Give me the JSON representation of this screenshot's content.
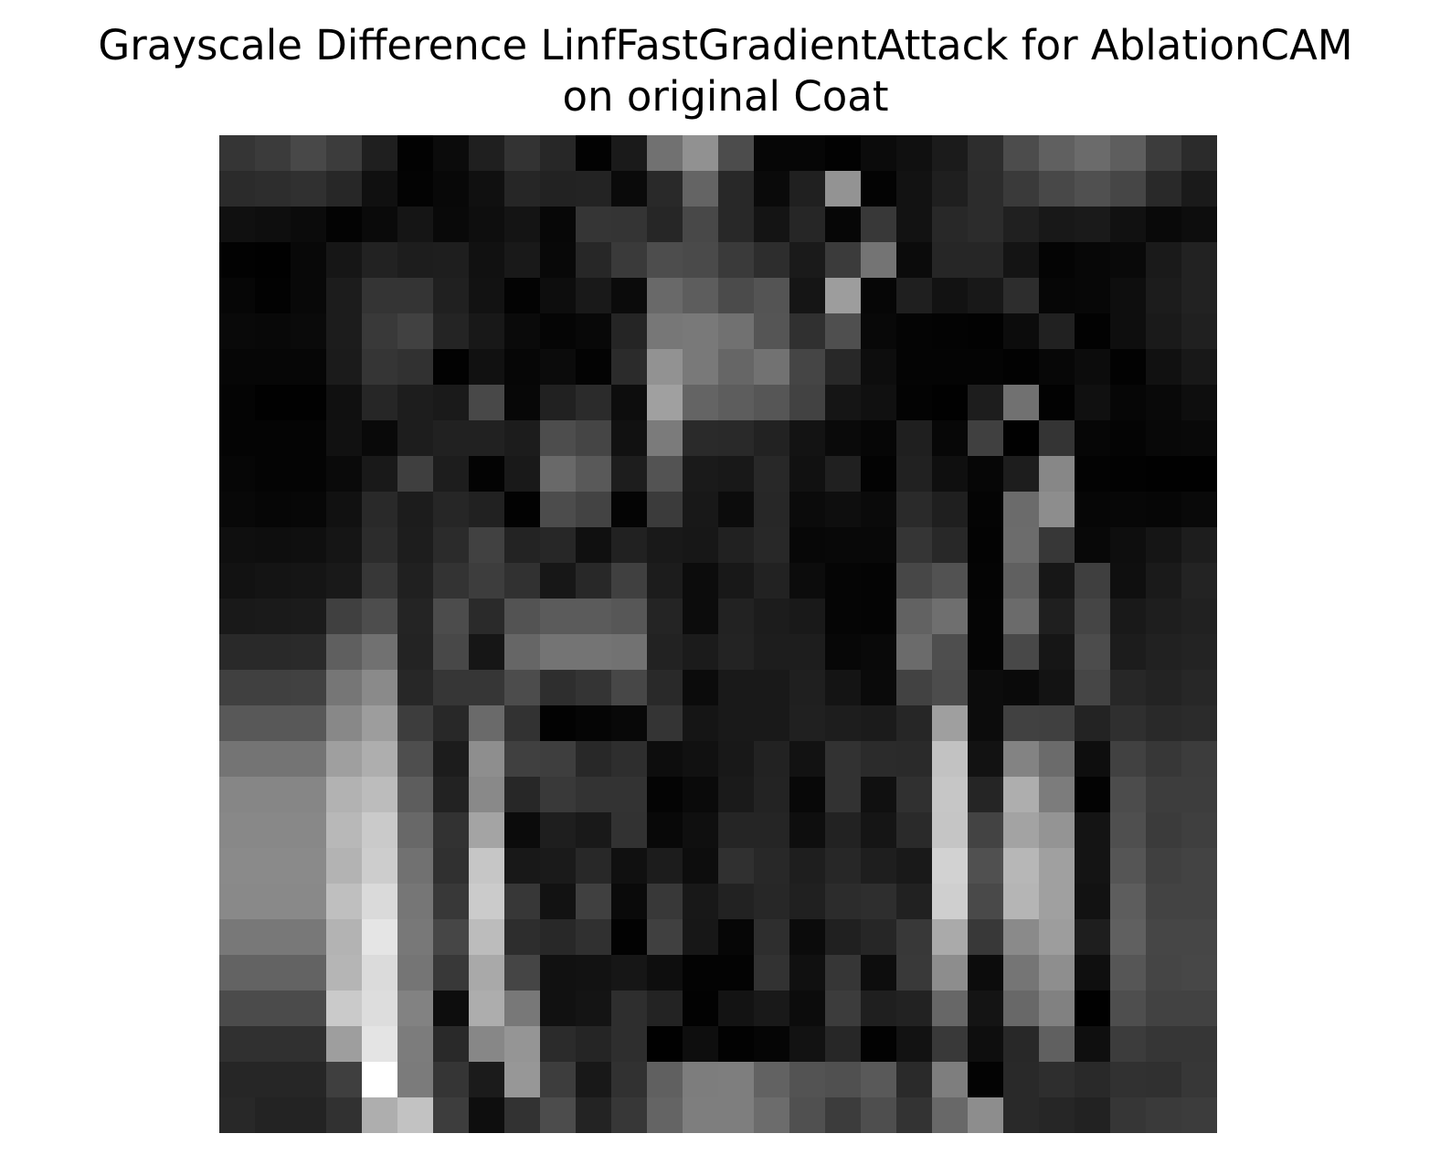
{
  "chart_data": {
    "type": "heatmap",
    "title_line1": "Grayscale Difference LinfFastGradientAttack for AblationCAM",
    "title_line2": "on original Coat",
    "colormap": "gray",
    "axes_visible": false,
    "rows": 28,
    "cols": 28,
    "values": [
      [
        53,
        59,
        72,
        60,
        31,
        2,
        11,
        31,
        51,
        39,
        2,
        26,
        113,
        145,
        76,
        6,
        6,
        2,
        11,
        16,
        27,
        45,
        76,
        96,
        107,
        94,
        60,
        43
      ],
      [
        43,
        45,
        48,
        39,
        16,
        3,
        8,
        16,
        38,
        34,
        35,
        10,
        41,
        100,
        40,
        10,
        32,
        147,
        3,
        18,
        31,
        44,
        58,
        72,
        80,
        70,
        41,
        26
      ],
      [
        16,
        14,
        11,
        3,
        10,
        21,
        9,
        14,
        20,
        7,
        53,
        52,
        38,
        72,
        40,
        20,
        38,
        6,
        56,
        18,
        40,
        44,
        32,
        24,
        26,
        17,
        9,
        13
      ],
      [
        2,
        1,
        8,
        22,
        34,
        29,
        30,
        17,
        25,
        8,
        39,
        58,
        77,
        74,
        58,
        45,
        26,
        59,
        116,
        11,
        38,
        38,
        20,
        4,
        7,
        9,
        26,
        34
      ],
      [
        6,
        2,
        8,
        28,
        52,
        52,
        32,
        18,
        3,
        13,
        25,
        11,
        105,
        93,
        75,
        84,
        21,
        157,
        6,
        31,
        18,
        24,
        45,
        6,
        7,
        14,
        28,
        34
      ],
      [
        9,
        8,
        10,
        28,
        57,
        65,
        36,
        24,
        10,
        5,
        8,
        37,
        119,
        121,
        113,
        85,
        48,
        79,
        8,
        4,
        3,
        2,
        12,
        33,
        2,
        14,
        26,
        32
      ],
      [
        6,
        6,
        6,
        27,
        53,
        49,
        2,
        17,
        6,
        11,
        3,
        43,
        146,
        121,
        102,
        114,
        69,
        40,
        13,
        4,
        4,
        4,
        2,
        7,
        12,
        2,
        17,
        24
      ],
      [
        4,
        1,
        1,
        16,
        38,
        29,
        26,
        72,
        7,
        33,
        43,
        13,
        160,
        100,
        93,
        86,
        66,
        21,
        16,
        3,
        1,
        29,
        113,
        2,
        16,
        6,
        9,
        14
      ],
      [
        4,
        4,
        4,
        17,
        9,
        29,
        33,
        33,
        28,
        77,
        69,
        17,
        123,
        42,
        41,
        34,
        19,
        10,
        6,
        31,
        7,
        64,
        1,
        52,
        6,
        4,
        8,
        9
      ],
      [
        6,
        4,
        4,
        10,
        25,
        63,
        29,
        3,
        25,
        105,
        89,
        29,
        83,
        26,
        24,
        40,
        17,
        32,
        3,
        33,
        15,
        6,
        29,
        135,
        3,
        2,
        1,
        1
      ],
      [
        8,
        6,
        7,
        17,
        41,
        28,
        38,
        33,
        2,
        76,
        67,
        4,
        59,
        24,
        12,
        39,
        11,
        14,
        10,
        42,
        31,
        4,
        107,
        141,
        6,
        7,
        6,
        9
      ],
      [
        15,
        14,
        15,
        21,
        44,
        29,
        43,
        65,
        35,
        39,
        16,
        33,
        25,
        23,
        33,
        40,
        7,
        8,
        8,
        53,
        40,
        3,
        108,
        55,
        8,
        14,
        21,
        29
      ],
      [
        18,
        20,
        21,
        25,
        55,
        32,
        51,
        61,
        49,
        23,
        40,
        64,
        28,
        12,
        24,
        34,
        12,
        5,
        4,
        71,
        82,
        4,
        96,
        23,
        63,
        15,
        26,
        35
      ],
      [
        25,
        26,
        27,
        64,
        77,
        36,
        76,
        42,
        83,
        91,
        91,
        87,
        36,
        12,
        34,
        28,
        25,
        5,
        4,
        98,
        111,
        5,
        107,
        31,
        69,
        25,
        30,
        33
      ],
      [
        41,
        41,
        42,
        95,
        113,
        35,
        72,
        22,
        102,
        116,
        116,
        114,
        34,
        27,
        35,
        29,
        29,
        7,
        9,
        107,
        78,
        5,
        72,
        22,
        76,
        28,
        33,
        35
      ],
      [
        64,
        64,
        65,
        118,
        138,
        39,
        54,
        54,
        76,
        46,
        52,
        71,
        41,
        11,
        25,
        25,
        31,
        20,
        10,
        66,
        76,
        12,
        10,
        19,
        70,
        39,
        35,
        39
      ],
      [
        88,
        88,
        88,
        136,
        157,
        61,
        40,
        106,
        50,
        2,
        5,
        8,
        52,
        21,
        25,
        25,
        32,
        29,
        27,
        38,
        159,
        12,
        65,
        64,
        35,
        47,
        41,
        43
      ],
      [
        116,
        116,
        116,
        159,
        174,
        78,
        28,
        142,
        64,
        62,
        40,
        46,
        13,
        17,
        24,
        34,
        18,
        50,
        43,
        42,
        194,
        18,
        131,
        107,
        14,
        65,
        55,
        60
      ],
      [
        134,
        134,
        134,
        178,
        188,
        93,
        34,
        137,
        39,
        57,
        51,
        51,
        4,
        10,
        26,
        35,
        8,
        50,
        16,
        48,
        198,
        37,
        174,
        124,
        3,
        76,
        61,
        61
      ],
      [
        136,
        136,
        136,
        184,
        202,
        104,
        50,
        164,
        11,
        30,
        25,
        50,
        8,
        15,
        37,
        37,
        14,
        34,
        21,
        42,
        197,
        67,
        163,
        148,
        20,
        79,
        59,
        63
      ],
      [
        138,
        138,
        138,
        179,
        205,
        113,
        48,
        198,
        24,
        26,
        40,
        16,
        28,
        13,
        48,
        40,
        30,
        39,
        30,
        25,
        210,
        80,
        183,
        160,
        20,
        85,
        64,
        67
      ],
      [
        137,
        137,
        137,
        191,
        218,
        118,
        56,
        203,
        55,
        18,
        64,
        10,
        56,
        24,
        34,
        39,
        32,
        44,
        46,
        33,
        207,
        73,
        181,
        160,
        18,
        93,
        67,
        67
      ],
      [
        120,
        120,
        120,
        179,
        229,
        120,
        70,
        188,
        45,
        40,
        48,
        2,
        64,
        23,
        6,
        46,
        11,
        32,
        38,
        56,
        170,
        56,
        138,
        157,
        30,
        96,
        70,
        70
      ],
      [
        99,
        99,
        99,
        181,
        219,
        117,
        56,
        169,
        69,
        17,
        18,
        22,
        14,
        3,
        3,
        50,
        16,
        54,
        13,
        57,
        141,
        12,
        117,
        142,
        15,
        86,
        69,
        71
      ],
      [
        75,
        75,
        75,
        202,
        221,
        130,
        13,
        173,
        120,
        17,
        20,
        46,
        35,
        2,
        19,
        25,
        12,
        60,
        31,
        34,
        103,
        20,
        104,
        129,
        1,
        78,
        66,
        66
      ],
      [
        48,
        48,
        48,
        158,
        228,
        124,
        41,
        135,
        149,
        43,
        37,
        46,
        1,
        14,
        2,
        5,
        18,
        39,
        2,
        18,
        57,
        14,
        40,
        96,
        15,
        60,
        54,
        54
      ],
      [
        38,
        38,
        38,
        63,
        255,
        123,
        53,
        27,
        151,
        61,
        24,
        49,
        96,
        125,
        126,
        98,
        83,
        80,
        89,
        42,
        126,
        3,
        41,
        46,
        41,
        49,
        48,
        55
      ],
      [
        40,
        35,
        35,
        49,
        174,
        194,
        61,
        14,
        50,
        76,
        35,
        55,
        100,
        126,
        126,
        108,
        80,
        60,
        78,
        51,
        104,
        141,
        41,
        38,
        34,
        54,
        58,
        60
      ]
    ]
  }
}
